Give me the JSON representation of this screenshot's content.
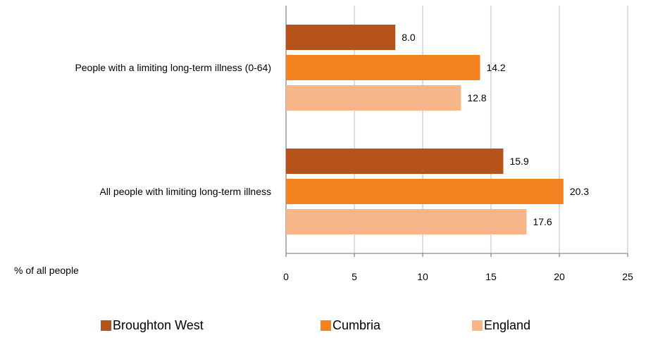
{
  "chart_data": {
    "type": "bar",
    "orientation": "horizontal",
    "categories": [
      "People with a limiting long-term illness (0-64)",
      "All people  with limiting long-term illness"
    ],
    "series": [
      {
        "name": "Broughton West",
        "color": "#B5531A",
        "values": [
          8.0,
          15.9
        ]
      },
      {
        "name": "Cumbria",
        "color": "#F58220",
        "values": [
          14.2,
          20.3
        ]
      },
      {
        "name": "England",
        "color": "#F7B58A",
        "values": [
          12.8,
          17.6
        ]
      }
    ],
    "xlabel": "% of all people",
    "xlim": [
      0,
      25
    ],
    "xticks": [
      0,
      5,
      10,
      15,
      20,
      25
    ],
    "grid": true,
    "legend_position": "bottom"
  }
}
